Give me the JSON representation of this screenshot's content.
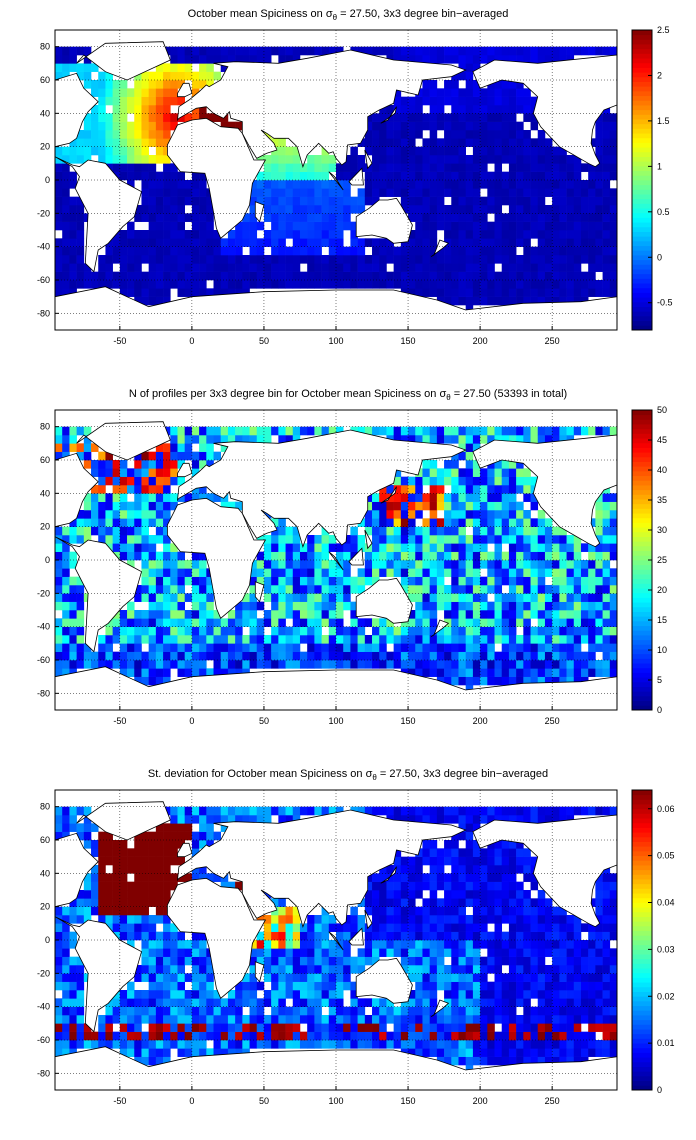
{
  "chart_data": [
    {
      "type": "heatmap",
      "title_prefix": "October mean Spiciness on ",
      "title_sym": "σ",
      "title_sub": "θ",
      "title_suffix": " = 27.50, 3x3 degree bin−averaged",
      "x_ticks": [
        "-50",
        "0",
        "50",
        "100",
        "150",
        "200",
        "250"
      ],
      "x_tick_values": [
        -50,
        0,
        50,
        100,
        150,
        200,
        250
      ],
      "y_ticks": [
        "80",
        "60",
        "40",
        "20",
        "0",
        "-20",
        "-40",
        "-60",
        "-80"
      ],
      "y_tick_values": [
        80,
        60,
        40,
        20,
        0,
        -20,
        -40,
        -60,
        -80
      ],
      "xlim": [
        -95,
        295
      ],
      "ylim": [
        -90,
        90
      ],
      "colorbar_ticks": [
        "2.5",
        "2",
        "1.5",
        "1",
        "0.5",
        "0",
        "-0.5"
      ],
      "colorbar_tick_values": [
        2.5,
        2,
        1.5,
        1,
        0.5,
        0,
        -0.5
      ],
      "clim": [
        -0.8,
        2.5
      ],
      "colormap": "jet",
      "grid": true,
      "field": "spiciness"
    },
    {
      "type": "heatmap",
      "title_prefix": "N of profiles per 3x3 degree bin for October mean Spiciness on ",
      "title_sym": "σ",
      "title_sub": "θ",
      "title_suffix": " = 27.50 (53393 in total)",
      "x_ticks": [
        "-50",
        "0",
        "50",
        "100",
        "150",
        "200",
        "250"
      ],
      "x_tick_values": [
        -50,
        0,
        50,
        100,
        150,
        200,
        250
      ],
      "y_ticks": [
        "80",
        "60",
        "40",
        "20",
        "0",
        "-20",
        "-40",
        "-60",
        "-80"
      ],
      "y_tick_values": [
        80,
        60,
        40,
        20,
        0,
        -20,
        -40,
        -60,
        -80
      ],
      "xlim": [
        -95,
        295
      ],
      "ylim": [
        -90,
        90
      ],
      "colorbar_ticks": [
        "50",
        "45",
        "40",
        "35",
        "30",
        "25",
        "20",
        "15",
        "10",
        "5",
        "0"
      ],
      "colorbar_tick_values": [
        50,
        45,
        40,
        35,
        30,
        25,
        20,
        15,
        10,
        5,
        0
      ],
      "clim": [
        0,
        50
      ],
      "colormap": "jet",
      "grid": true,
      "field": "count"
    },
    {
      "type": "heatmap",
      "title_prefix": "St. deviation for October mean Spiciness on ",
      "title_sym": "σ",
      "title_sub": "θ",
      "title_suffix": " = 27.50, 3x3 degree bin−averaged",
      "x_ticks": [
        "-50",
        "0",
        "50",
        "100",
        "150",
        "200",
        "250"
      ],
      "x_tick_values": [
        -50,
        0,
        50,
        100,
        150,
        200,
        250
      ],
      "y_ticks": [
        "80",
        "60",
        "40",
        "20",
        "0",
        "-20",
        "-40",
        "-60",
        "-80"
      ],
      "y_tick_values": [
        80,
        60,
        40,
        20,
        0,
        -20,
        -40,
        -60,
        -80
      ],
      "xlim": [
        -95,
        295
      ],
      "ylim": [
        -90,
        90
      ],
      "colorbar_ticks": [
        "0.06",
        "0.05",
        "0.04",
        "0.03",
        "0.02",
        "0.01",
        "0"
      ],
      "colorbar_tick_values": [
        0.06,
        0.05,
        0.04,
        0.03,
        0.02,
        0.01,
        0
      ],
      "clim": [
        0,
        0.064
      ],
      "colormap": "jet",
      "grid": true,
      "field": "stdev"
    }
  ]
}
